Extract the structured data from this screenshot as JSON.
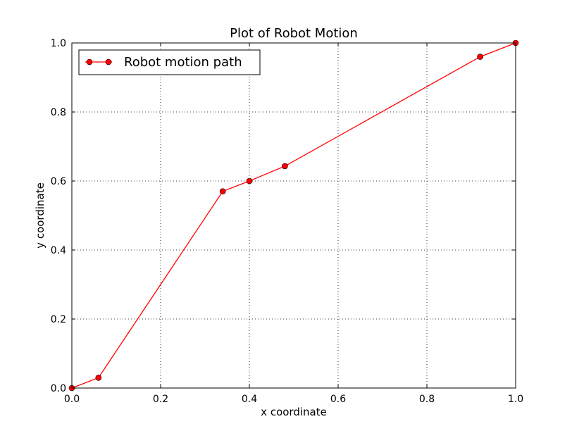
{
  "chart_data": {
    "type": "line",
    "title": "Plot of Robot Motion",
    "xlabel": "x coordinate",
    "ylabel": "y coordinate",
    "xlim": [
      0.0,
      1.0
    ],
    "ylim": [
      0.0,
      1.0
    ],
    "xticks": [
      "0.0",
      "0.2",
      "0.4",
      "0.6",
      "0.8",
      "1.0"
    ],
    "yticks": [
      "0.0",
      "0.2",
      "0.4",
      "0.6",
      "0.8",
      "1.0"
    ],
    "grid": true,
    "legend_position": "upper-left",
    "series": [
      {
        "name": "Robot motion path",
        "color": "#ff0000",
        "marker": "circle",
        "x": [
          0.0,
          0.06,
          0.34,
          0.4,
          0.48,
          0.92,
          1.0
        ],
        "y": [
          0.0,
          0.03,
          0.57,
          0.6,
          0.643,
          0.96,
          1.0
        ]
      }
    ]
  }
}
